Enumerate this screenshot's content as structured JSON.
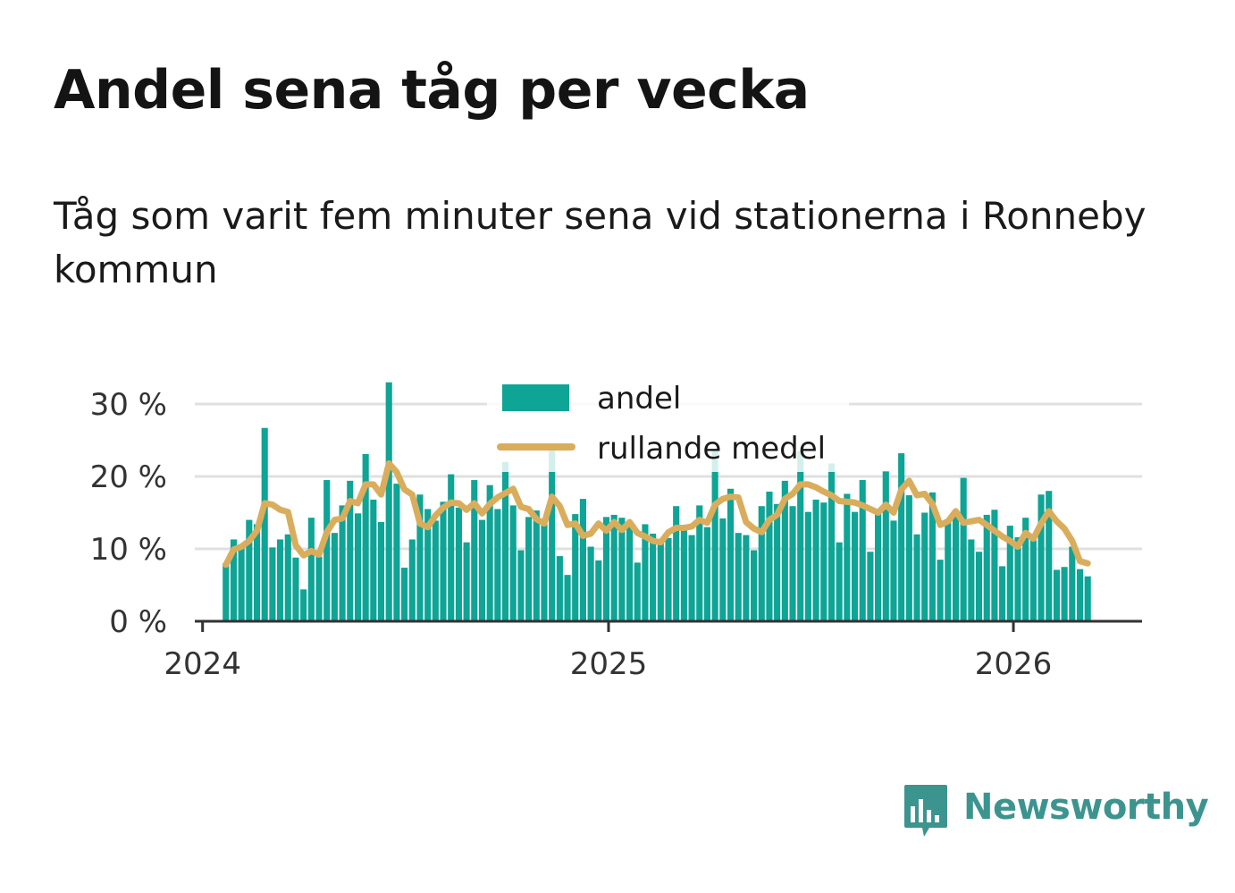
{
  "header": {
    "title": "Andel sena tåg per vecka",
    "subtitle": "Tåg som varit fem minuter sena vid stationerna i Ronneby kommun"
  },
  "brand": {
    "name": "Newsworthy",
    "icon": "bar-chart-speech-bubble-icon",
    "color": "#3c948f"
  },
  "chart_data": {
    "type": "bar",
    "x_axis": {
      "type": "date",
      "range": [
        "2023-12-25",
        "2026-04-27"
      ],
      "ticks": [
        "2024-01-01",
        "2025-01-01",
        "2026-01-01"
      ],
      "tick_labels": [
        "2024",
        "2025",
        "2026"
      ]
    },
    "y_axis": {
      "range": [
        0,
        33
      ],
      "ticks": [
        0,
        10,
        20,
        30
      ],
      "tick_labels": [
        "0 %",
        "10 %",
        "20 %",
        "30 %"
      ],
      "unit": "%"
    },
    "grid": true,
    "legend": {
      "placement": "top-center",
      "entries": [
        "andel",
        "rullande medel"
      ]
    },
    "colors": {
      "andel": "#0ea496",
      "rullande_medel": "#d9ad5c",
      "grid": "#e0e0e0",
      "axis": "#333333"
    },
    "start_week": "2024-01-22",
    "series": [
      {
        "name": "andel",
        "kind": "bar",
        "values": [
          8.0,
          11.3,
          10.3,
          14.0,
          13.4,
          26.7,
          10.2,
          11.3,
          12.0,
          8.8,
          4.4,
          14.3,
          8.9,
          19.5,
          12.2,
          16.0,
          19.4,
          14.9,
          23.1,
          16.8,
          13.7,
          33.0,
          19.0,
          7.4,
          11.3,
          17.5,
          15.5,
          13.9,
          16.5,
          20.3,
          15.7,
          10.9,
          19.5,
          14.0,
          18.8,
          15.5,
          22.0,
          16.0,
          9.8,
          14.4,
          15.3,
          13.8,
          23.8,
          9.0,
          6.4,
          14.8,
          16.9,
          10.3,
          8.4,
          14.4,
          14.7,
          14.3,
          13.5,
          8.1,
          13.4,
          12.1,
          10.9,
          11.5,
          15.9,
          13.2,
          11.9,
          16.0,
          13.0,
          23.7,
          14.2,
          18.3,
          12.2,
          11.9,
          9.8,
          15.9,
          17.9,
          16.2,
          19.4,
          15.9,
          23.5,
          15.1,
          16.8,
          16.4,
          21.8,
          10.9,
          17.6,
          15.1,
          19.5,
          9.6,
          14.9,
          20.7,
          13.9,
          23.2,
          17.4,
          12.0,
          15.0,
          17.8,
          8.5,
          13.7,
          15.0,
          19.8,
          11.3,
          9.6,
          14.7,
          15.4,
          7.6,
          13.2,
          11.6,
          14.3,
          11.2,
          17.5,
          18.0,
          7.1,
          7.5,
          10.3,
          7.2,
          6.2
        ]
      },
      {
        "name": "rullande medel",
        "kind": "line",
        "values": [
          7.8,
          9.9,
          10.3,
          11.1,
          12.5,
          16.3,
          16.1,
          15.4,
          15.1,
          10.5,
          9.1,
          9.7,
          9.2,
          12.3,
          14.0,
          14.2,
          16.6,
          16.3,
          18.9,
          18.9,
          17.5,
          21.8,
          20.6,
          18.2,
          17.5,
          13.5,
          13.0,
          14.6,
          15.7,
          16.4,
          16.3,
          15.4,
          16.3,
          14.9,
          16.2,
          17.1,
          17.7,
          18.3,
          15.8,
          15.5,
          14.1,
          13.5,
          17.2,
          15.9,
          13.3,
          13.5,
          11.8,
          12.1,
          13.5,
          12.5,
          13.7,
          12.6,
          13.7,
          12.2,
          11.7,
          11.1,
          10.9,
          12.3,
          12.9,
          12.9,
          13.1,
          14.0,
          13.6,
          16.1,
          16.9,
          17.2,
          17.1,
          13.7,
          12.8,
          12.3,
          14.0,
          14.7,
          16.9,
          17.6,
          18.9,
          18.9,
          18.5,
          17.9,
          17.4,
          16.6,
          16.5,
          16.4,
          16.0,
          15.5,
          15.0,
          16.1,
          15.0,
          18.2,
          19.4,
          17.4,
          17.6,
          16.2,
          13.3,
          13.8,
          15.2,
          13.6,
          13.8,
          14.0,
          13.3,
          12.5,
          11.7,
          11.1,
          10.3,
          12.2,
          11.4,
          13.5,
          15.2,
          13.8,
          12.8,
          11.1,
          8.3,
          8.0
        ]
      }
    ]
  }
}
